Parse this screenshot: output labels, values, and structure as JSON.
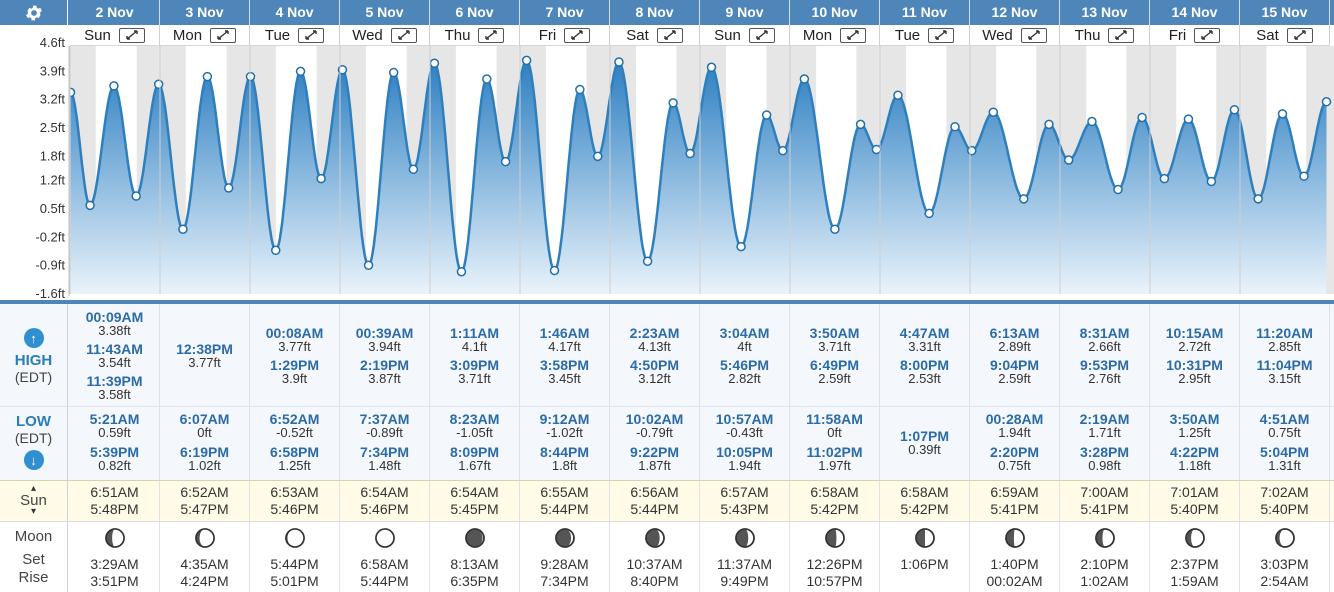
{
  "y_axis": {
    "labels": [
      "4.6ft",
      "3.9ft",
      "3.2ft",
      "2.5ft",
      "1.8ft",
      "1.2ft",
      "0.5ft",
      "-0.2ft",
      "-0.9ft",
      "-1.6ft"
    ]
  },
  "chart_colors": {
    "fill_top": "#2d7fc2",
    "fill_bottom": "#e9f3fb",
    "line": "#2f7fbd",
    "point": "#1f6fab",
    "header": "#4f86b9"
  },
  "header_icon": "gear-icon",
  "days": [
    {
      "date": "2 Nov",
      "weekday": "Sun",
      "high": [
        {
          "time": "00:09AM",
          "ht": "3.38ft"
        },
        {
          "time": "11:43AM",
          "ht": "3.54ft"
        },
        {
          "time": "11:39PM",
          "ht": "3.58ft"
        }
      ],
      "low": [
        {
          "time": "5:21AM",
          "ht": "0.59ft"
        },
        {
          "time": "5:39PM",
          "ht": "0.82ft"
        }
      ],
      "sunrise": "6:51AM",
      "sunset": "5:48PM",
      "moon": {
        "phase": 0.33,
        "set": "3:29AM",
        "rise": "3:51PM"
      }
    },
    {
      "date": "3 Nov",
      "weekday": "Mon",
      "high": [
        {
          "time": "12:38PM",
          "ht": "3.77ft"
        }
      ],
      "low": [
        {
          "time": "6:07AM",
          "ht": "0ft"
        },
        {
          "time": "6:19PM",
          "ht": "1.02ft"
        }
      ],
      "sunrise": "6:52AM",
      "sunset": "5:47PM",
      "moon": {
        "phase": 0.4,
        "set": "4:35AM",
        "rise": "4:24PM"
      }
    },
    {
      "date": "4 Nov",
      "weekday": "Tue",
      "high": [
        {
          "time": "00:08AM",
          "ht": "3.77ft"
        },
        {
          "time": "1:29PM",
          "ht": "3.9ft"
        }
      ],
      "low": [
        {
          "time": "6:52AM",
          "ht": "-0.52ft"
        },
        {
          "time": "6:58PM",
          "ht": "1.25ft"
        }
      ],
      "sunrise": "6:53AM",
      "sunset": "5:46PM",
      "moon": {
        "phase": 0.46,
        "set": "5:44PM",
        "rise": "5:01PM"
      }
    },
    {
      "date": "5 Nov",
      "weekday": "Wed",
      "high": [
        {
          "time": "00:39AM",
          "ht": "3.94ft"
        },
        {
          "time": "2:19PM",
          "ht": "3.87ft"
        }
      ],
      "low": [
        {
          "time": "7:37AM",
          "ht": "-0.89ft"
        },
        {
          "time": "7:34PM",
          "ht": "1.48ft"
        }
      ],
      "sunrise": "6:54AM",
      "sunset": "5:46PM",
      "moon": {
        "phase": 0.5,
        "set": "6:58AM",
        "rise": "5:44PM"
      }
    },
    {
      "date": "6 Nov",
      "weekday": "Thu",
      "high": [
        {
          "time": "1:11AM",
          "ht": "4.1ft"
        },
        {
          "time": "3:09PM",
          "ht": "3.71ft"
        }
      ],
      "low": [
        {
          "time": "8:23AM",
          "ht": "-1.05ft"
        },
        {
          "time": "8:09PM",
          "ht": "1.67ft"
        }
      ],
      "sunrise": "6:54AM",
      "sunset": "5:45PM",
      "moon": {
        "phase": 0.54,
        "set": "8:13AM",
        "rise": "6:35PM"
      }
    },
    {
      "date": "7 Nov",
      "weekday": "Fri",
      "high": [
        {
          "time": "1:46AM",
          "ht": "4.17ft"
        },
        {
          "time": "3:58PM",
          "ht": "3.45ft"
        }
      ],
      "low": [
        {
          "time": "9:12AM",
          "ht": "-1.02ft"
        },
        {
          "time": "8:44PM",
          "ht": "1.8ft"
        }
      ],
      "sunrise": "6:55AM",
      "sunset": "5:44PM",
      "moon": {
        "phase": 0.58,
        "set": "9:28AM",
        "rise": "7:34PM"
      }
    },
    {
      "date": "8 Nov",
      "weekday": "Sat",
      "high": [
        {
          "time": "2:23AM",
          "ht": "4.13ft"
        },
        {
          "time": "4:50PM",
          "ht": "3.12ft"
        }
      ],
      "low": [
        {
          "time": "10:02AM",
          "ht": "-0.79ft"
        },
        {
          "time": "9:22PM",
          "ht": "1.87ft"
        }
      ],
      "sunrise": "6:56AM",
      "sunset": "5:44PM",
      "moon": {
        "phase": 0.62,
        "set": "10:37AM",
        "rise": "8:40PM"
      }
    },
    {
      "date": "9 Nov",
      "weekday": "Sun",
      "high": [
        {
          "time": "3:04AM",
          "ht": "4ft"
        },
        {
          "time": "5:46PM",
          "ht": "2.82ft"
        }
      ],
      "low": [
        {
          "time": "10:57AM",
          "ht": "-0.43ft"
        },
        {
          "time": "10:05PM",
          "ht": "1.94ft"
        }
      ],
      "sunrise": "6:57AM",
      "sunset": "5:43PM",
      "moon": {
        "phase": 0.66,
        "set": "11:37AM",
        "rise": "9:49PM"
      }
    },
    {
      "date": "10 Nov",
      "weekday": "Mon",
      "high": [
        {
          "time": "3:50AM",
          "ht": "3.71ft"
        },
        {
          "time": "6:49PM",
          "ht": "2.59ft"
        }
      ],
      "low": [
        {
          "time": "11:58AM",
          "ht": "0ft"
        },
        {
          "time": "11:02PM",
          "ht": "1.97ft"
        }
      ],
      "sunrise": "6:58AM",
      "sunset": "5:42PM",
      "moon": {
        "phase": 0.71,
        "set": "12:26PM",
        "rise": "10:57PM"
      }
    },
    {
      "date": "11 Nov",
      "weekday": "Tue",
      "high": [
        {
          "time": "4:47AM",
          "ht": "3.31ft"
        },
        {
          "time": "8:00PM",
          "ht": "2.53ft"
        }
      ],
      "low": [
        {
          "time": "1:07PM",
          "ht": "0.39ft"
        }
      ],
      "sunrise": "6:58AM",
      "sunset": "5:42PM",
      "moon": {
        "phase": 0.75,
        "set": "1:06PM",
        "rise": ""
      }
    },
    {
      "date": "12 Nov",
      "weekday": "Wed",
      "high": [
        {
          "time": "6:13AM",
          "ht": "2.89ft"
        },
        {
          "time": "9:04PM",
          "ht": "2.59ft"
        }
      ],
      "low": [
        {
          "time": "00:28AM",
          "ht": "1.94ft"
        },
        {
          "time": "2:20PM",
          "ht": "0.75ft"
        }
      ],
      "sunrise": "6:59AM",
      "sunset": "5:41PM",
      "moon": {
        "phase": 0.78,
        "set": "1:40PM",
        "rise": "00:02AM"
      }
    },
    {
      "date": "13 Nov",
      "weekday": "Thu",
      "high": [
        {
          "time": "8:31AM",
          "ht": "2.66ft"
        },
        {
          "time": "9:53PM",
          "ht": "2.76ft"
        }
      ],
      "low": [
        {
          "time": "2:19AM",
          "ht": "1.71ft"
        },
        {
          "time": "3:28PM",
          "ht": "0.98ft"
        }
      ],
      "sunrise": "7:00AM",
      "sunset": "5:41PM",
      "moon": {
        "phase": 0.82,
        "set": "2:10PM",
        "rise": "1:02AM"
      }
    },
    {
      "date": "14 Nov",
      "weekday": "Fri",
      "high": [
        {
          "time": "10:15AM",
          "ht": "2.72ft"
        },
        {
          "time": "10:31PM",
          "ht": "2.95ft"
        }
      ],
      "low": [
        {
          "time": "3:50AM",
          "ht": "1.25ft"
        },
        {
          "time": "4:22PM",
          "ht": "1.18ft"
        }
      ],
      "sunrise": "7:01AM",
      "sunset": "5:40PM",
      "moon": {
        "phase": 0.86,
        "set": "2:37PM",
        "rise": "1:59AM"
      }
    },
    {
      "date": "15 Nov",
      "weekday": "Sat",
      "high": [
        {
          "time": "11:20AM",
          "ht": "2.85ft"
        },
        {
          "time": "11:04PM",
          "ht": "3.15ft"
        }
      ],
      "low": [
        {
          "time": "4:51AM",
          "ht": "0.75ft"
        },
        {
          "time": "5:04PM",
          "ht": "1.31ft"
        }
      ],
      "sunrise": "7:02AM",
      "sunset": "5:40PM",
      "moon": {
        "phase": 0.9,
        "set": "3:03PM",
        "rise": "2:54AM"
      }
    }
  ],
  "labels": {
    "high": "HIGH",
    "high_tz": "(EDT)",
    "low": "LOW",
    "low_tz": "(EDT)",
    "sun": "Sun",
    "moon": "Moon",
    "moon_set": "Set",
    "moon_rise": "Rise"
  }
}
